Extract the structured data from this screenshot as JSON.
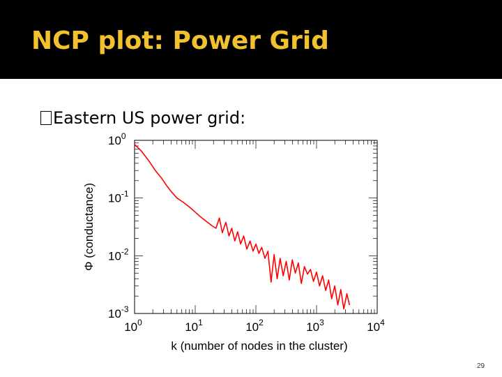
{
  "slide": {
    "title": "NCP plot: Power Grid",
    "bullet": "Eastern US power grid:",
    "bullet_glyph": "�",
    "page_number": "29"
  },
  "colors": {
    "title_bar": "#000000",
    "title_text": "#f2c12e",
    "series": "#ff0000"
  },
  "chart_data": {
    "type": "line",
    "xlabel": "k (number of nodes in the cluster)",
    "ylabel": "Φ (conductance)",
    "xscale": "log",
    "yscale": "log",
    "xlim": [
      1,
      10000
    ],
    "ylim": [
      0.001,
      1
    ],
    "xticks": [
      {
        "base": "10",
        "exp": "0"
      },
      {
        "base": "10",
        "exp": "1"
      },
      {
        "base": "10",
        "exp": "2"
      },
      {
        "base": "10",
        "exp": "3"
      },
      {
        "base": "10",
        "exp": "4"
      }
    ],
    "yticks": [
      {
        "base": "10",
        "exp": "0"
      },
      {
        "base": "10",
        "exp": "-1"
      },
      {
        "base": "10",
        "exp": "-2"
      },
      {
        "base": "10",
        "exp": "-3"
      }
    ],
    "grid": false,
    "series": [
      {
        "x": [
          1.0,
          1.3,
          1.7,
          2.2,
          2.8,
          3.3,
          4.0,
          5.0,
          6.3,
          8.0,
          10,
          12,
          15,
          19,
          22,
          25,
          28,
          32,
          36,
          40,
          45,
          50,
          56,
          63,
          71,
          80,
          90,
          100,
          112,
          125,
          141,
          158,
          178,
          200,
          224,
          251,
          282,
          316,
          355,
          398,
          447,
          501,
          562,
          631,
          708,
          794,
          891,
          1000,
          1122,
          1259,
          1413,
          1585,
          1778,
          1995,
          2239,
          2512,
          2818,
          3162,
          3500
        ],
        "y": [
          0.85,
          0.65,
          0.45,
          0.3,
          0.22,
          0.17,
          0.13,
          0.1,
          0.085,
          0.07,
          0.057,
          0.048,
          0.04,
          0.033,
          0.03,
          0.045,
          0.025,
          0.038,
          0.022,
          0.03,
          0.018,
          0.026,
          0.016,
          0.022,
          0.013,
          0.018,
          0.012,
          0.016,
          0.011,
          0.014,
          0.009,
          0.012,
          0.0035,
          0.0105,
          0.004,
          0.009,
          0.0045,
          0.008,
          0.0038,
          0.0085,
          0.005,
          0.0075,
          0.0033,
          0.0065,
          0.0048,
          0.0058,
          0.0036,
          0.0052,
          0.003,
          0.0045,
          0.0025,
          0.0038,
          0.0018,
          0.003,
          0.0014,
          0.0026,
          0.0012,
          0.0022,
          0.0014
        ]
      }
    ]
  }
}
